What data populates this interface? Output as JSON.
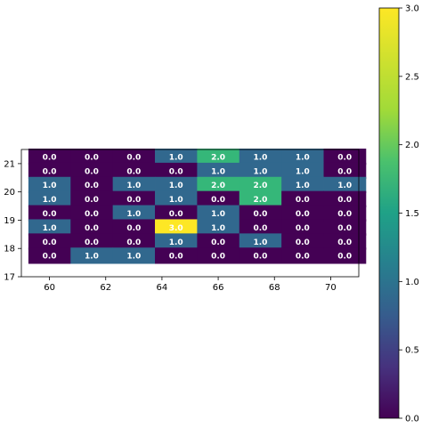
{
  "chart_data": {
    "type": "heatmap",
    "title": "",
    "xlabel": "",
    "ylabel": "",
    "x_ticks": [
      "60",
      "62",
      "64",
      "66",
      "68",
      "70"
    ],
    "y_ticks": [
      "17",
      "18",
      "19",
      "20",
      "21"
    ],
    "xlim": [
      59,
      71
    ],
    "ylim": [
      17,
      21.5
    ],
    "colormap": "viridis",
    "colorbar": {
      "range": [
        0,
        3
      ],
      "ticks": [
        "0.0",
        "0.5",
        "1.0",
        "1.5",
        "2.0",
        "2.5",
        "3.0"
      ]
    },
    "cell_x_centers": [
      60,
      61.5,
      63,
      64.5,
      66,
      67.5,
      69,
      70.5
    ],
    "cell_y_centers_top_to_bottom": [
      21.25,
      20.75,
      20.25,
      19.75,
      19.25,
      18.75,
      18.25,
      17.75
    ],
    "values": [
      [
        0,
        0,
        0,
        1,
        2,
        1,
        1,
        0
      ],
      [
        0,
        0,
        0,
        0,
        1,
        1,
        1,
        0
      ],
      [
        1,
        0,
        1,
        1,
        2,
        2,
        1,
        1
      ],
      [
        1,
        0,
        0,
        1,
        0,
        2,
        0,
        0
      ],
      [
        0,
        0,
        1,
        0,
        1,
        0,
        0,
        0
      ],
      [
        1,
        0,
        0,
        3,
        1,
        0,
        0,
        0
      ],
      [
        0,
        0,
        0,
        1,
        0,
        1,
        0,
        0
      ],
      [
        0,
        1,
        1,
        0,
        0,
        0,
        0,
        0
      ]
    ],
    "cell_labels": [
      [
        "0.0",
        "0.0",
        "0.0",
        "1.0",
        "2.0",
        "1.0",
        "1.0",
        "0.0"
      ],
      [
        "0.0",
        "0.0",
        "0.0",
        "0.0",
        "1.0",
        "1.0",
        "1.0",
        "0.0"
      ],
      [
        "1.0",
        "0.0",
        "1.0",
        "1.0",
        "2.0",
        "2.0",
        "1.0",
        "1.0"
      ],
      [
        "1.0",
        "0.0",
        "0.0",
        "1.0",
        "0.0",
        "2.0",
        "0.0",
        "0.0"
      ],
      [
        "0.0",
        "0.0",
        "1.0",
        "0.0",
        "1.0",
        "0.0",
        "0.0",
        "0.0"
      ],
      [
        "1.0",
        "0.0",
        "0.0",
        "3.0",
        "1.0",
        "0.0",
        "0.0",
        "0.0"
      ],
      [
        "0.0",
        "0.0",
        "0.0",
        "1.0",
        "0.0",
        "1.0",
        "0.0",
        "0.0"
      ],
      [
        "0.0",
        "1.0",
        "1.0",
        "0.0",
        "0.0",
        "0.0",
        "0.0",
        "0.0"
      ]
    ],
    "colors": {
      "0": "#440154",
      "1": "#31688e",
      "2": "#35b779",
      "3": "#fde725"
    },
    "grid": false
  }
}
